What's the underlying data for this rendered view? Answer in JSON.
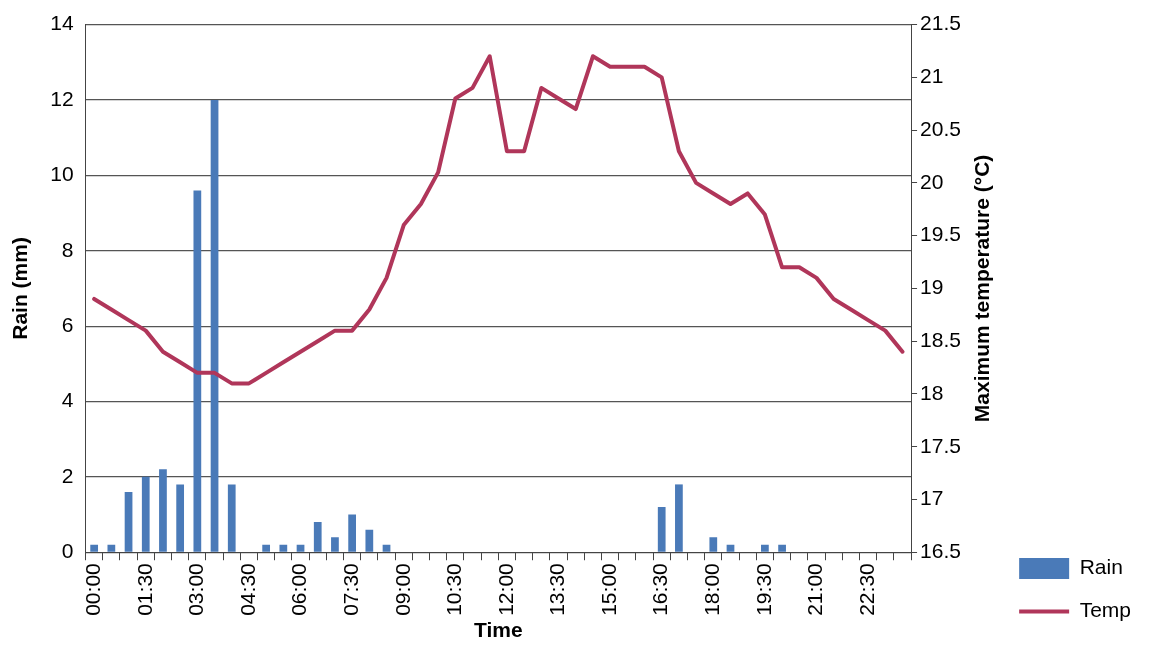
{
  "chart_data": {
    "type": "bar",
    "xlabel": "Time",
    "ylabel": "Rain (mm)",
    "y2label": "Maximum temperature (°C)",
    "categories": [
      "00:00",
      null,
      null,
      "01:30",
      null,
      null,
      "03:00",
      null,
      null,
      "04:30",
      null,
      null,
      "06:00",
      null,
      null,
      "07:30",
      null,
      null,
      "09:00",
      null,
      null,
      "10:30",
      null,
      null,
      "12:00",
      null,
      null,
      "13:30",
      null,
      null,
      "15:00",
      null,
      null,
      "16:30",
      null,
      null,
      "18:00",
      null,
      null,
      "19:30",
      null,
      null,
      "21:00",
      null,
      null,
      "22:30",
      null,
      null
    ],
    "series": [
      {
        "name": "Rain",
        "color": "#4a7ab8",
        "values": [
          0.2,
          0.2,
          1.6,
          2.0,
          2.2,
          1.8,
          9.6,
          12.0,
          1.8,
          0,
          0.2,
          0.2,
          0.2,
          0.8,
          0.4,
          1.0,
          0.6,
          0.2,
          0,
          0,
          0,
          0,
          0,
          0,
          0,
          0,
          0,
          0,
          0,
          0,
          0,
          0,
          0,
          1.2,
          1.8,
          0,
          0.4,
          0.2,
          0,
          0.2,
          0.2,
          0,
          0,
          0,
          0,
          0,
          0,
          0
        ]
      },
      {
        "name": "Temp",
        "type": "line",
        "axis": "y2",
        "color": "#b0365a",
        "values": [
          18.9,
          18.8,
          18.7,
          18.6,
          18.4,
          18.3,
          18.2,
          18.2,
          18.1,
          18.1,
          18.2,
          18.3,
          18.4,
          18.5,
          18.6,
          18.6,
          18.8,
          19.1,
          19.6,
          19.8,
          20.1,
          20.8,
          20.9,
          21.2,
          20.3,
          20.3,
          20.9,
          20.8,
          20.7,
          21.2,
          21.1,
          21.1,
          21.1,
          21.0,
          20.3,
          20.0,
          19.9,
          19.8,
          19.9,
          19.7,
          19.2,
          19.2,
          19.1,
          18.9,
          18.8,
          18.7,
          18.6,
          18.4
        ]
      }
    ],
    "ylim": [
      0,
      14
    ],
    "yticks": [
      0,
      2,
      4,
      6,
      8,
      10,
      12,
      14
    ],
    "y2lim": [
      16.5,
      21.5
    ],
    "y2ticks": [
      16.5,
      17,
      17.5,
      18,
      18.5,
      19,
      19.5,
      20,
      20.5,
      21,
      21.5
    ],
    "grid": "y",
    "legend": "right",
    "marker": "none",
    "line_style": "solid"
  }
}
